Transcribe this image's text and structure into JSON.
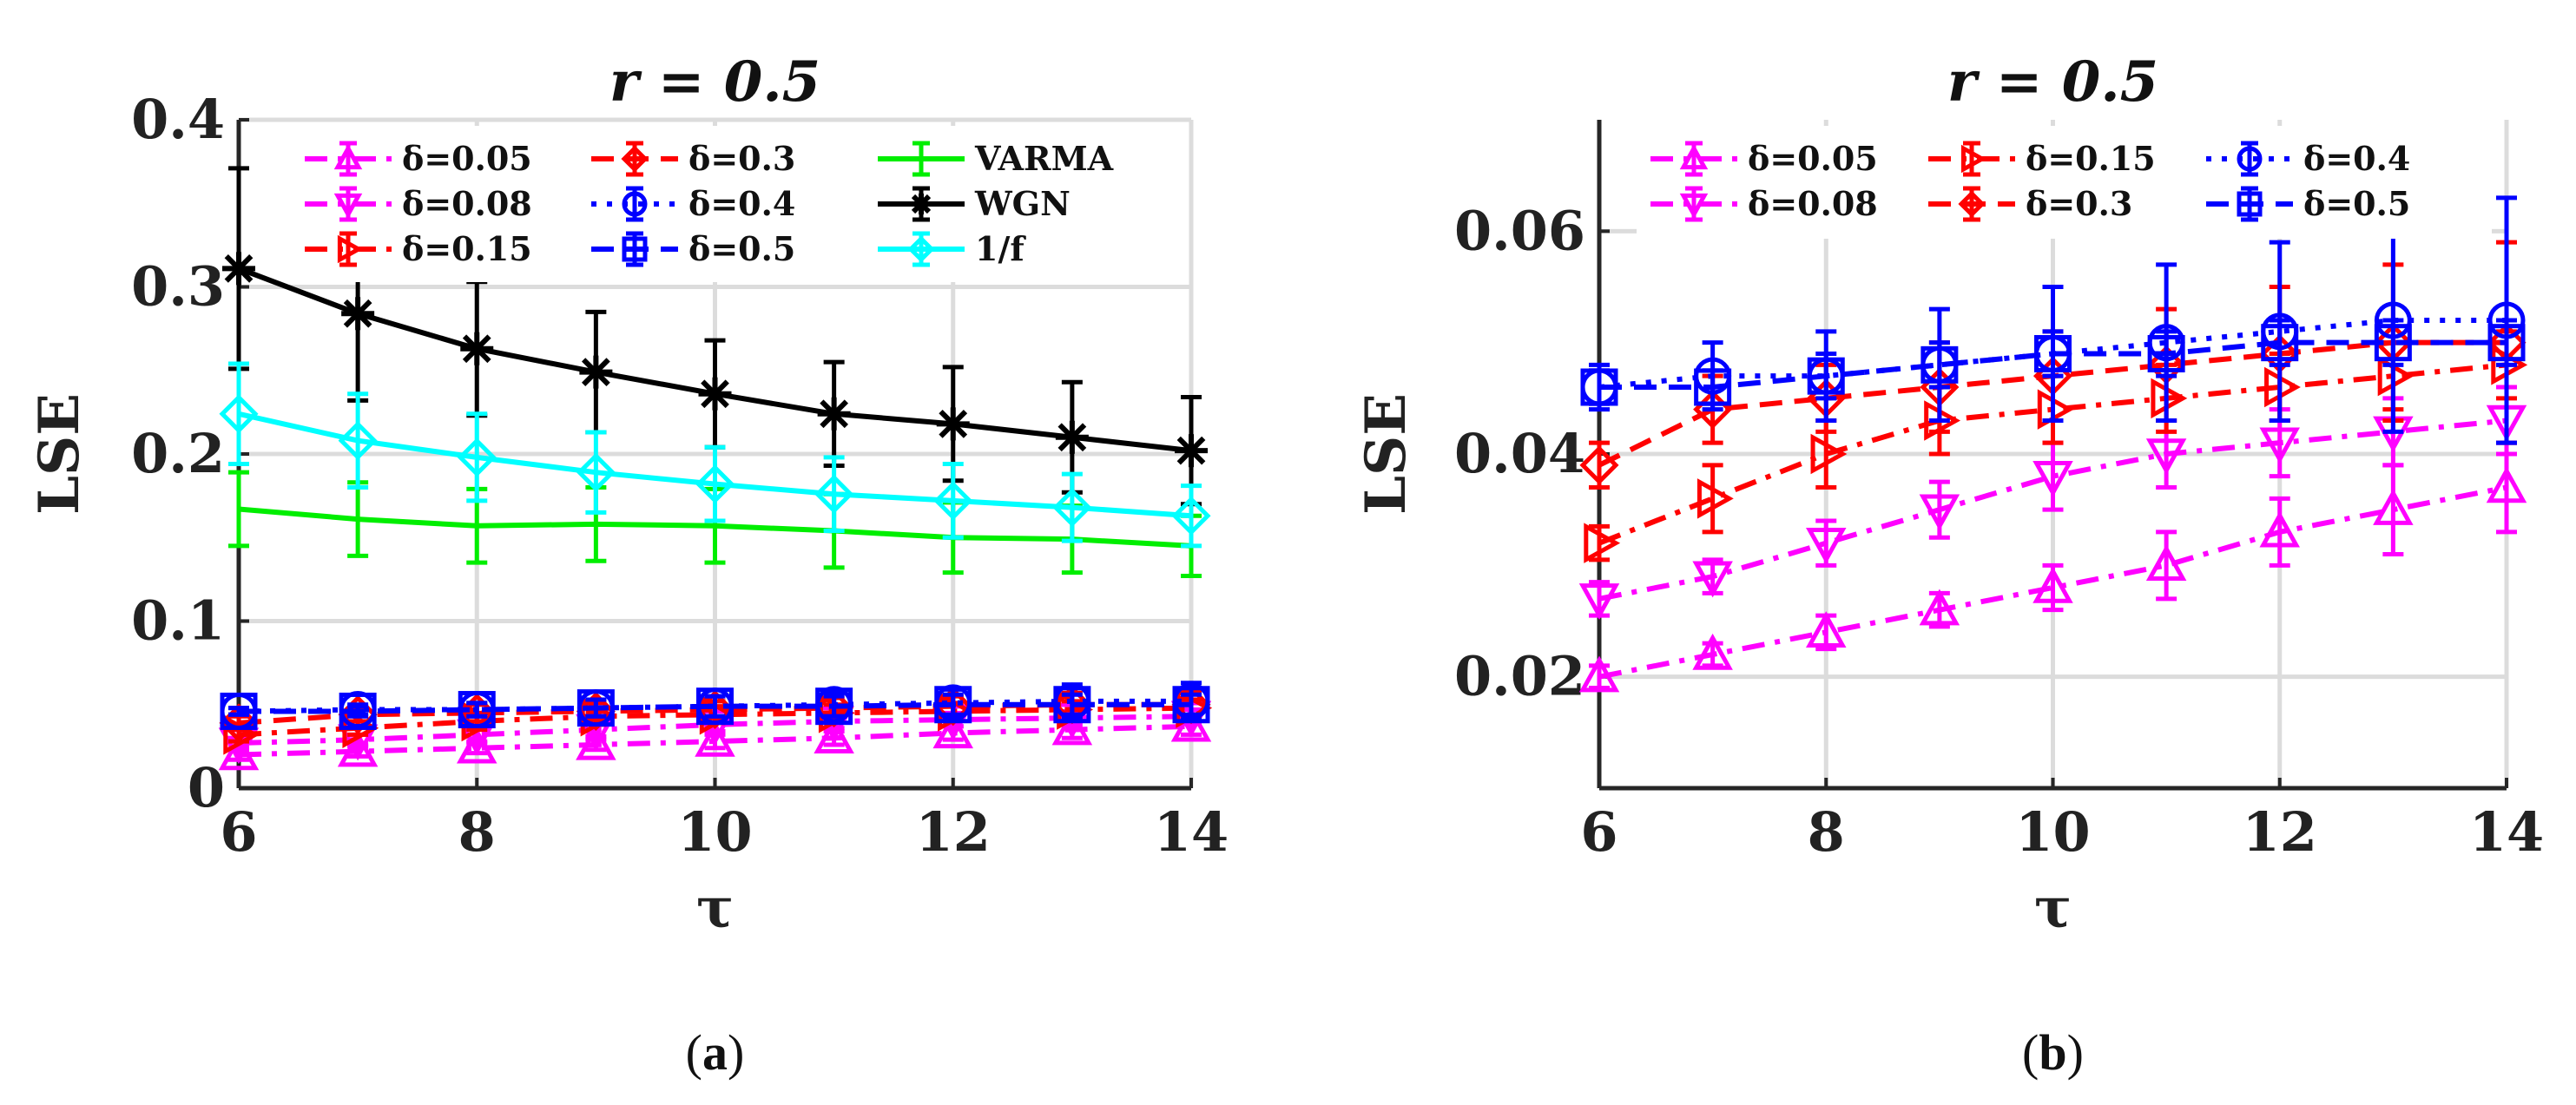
{
  "chart_data": [
    {
      "id": "a",
      "type": "line",
      "title": "r = 0.5",
      "xlabel": "τ",
      "ylabel": "LSE",
      "caption": "a",
      "xlim": [
        6,
        14
      ],
      "ylim": [
        0,
        0.4
      ],
      "xticks": [
        6,
        8,
        10,
        12,
        14
      ],
      "xtick_labels": [
        "6",
        "8",
        "10",
        "12",
        "14"
      ],
      "yticks": [
        0,
        0.1,
        0.2,
        0.3,
        0.4
      ],
      "ytick_labels": [
        "0",
        "0.1",
        "0.2",
        "0.3",
        "0.4"
      ],
      "grid": true,
      "legend_position": "top",
      "legend_columns": 3,
      "x": [
        6,
        7,
        8,
        9,
        10,
        11,
        12,
        13,
        14
      ],
      "series": [
        {
          "name": "δ=0.05",
          "color": "#ff00ff",
          "dash": "dashdot",
          "marker": "triangle-up",
          "values": [
            0.02,
            0.022,
            0.024,
            0.026,
            0.028,
            0.03,
            0.033,
            0.035,
            0.037
          ],
          "err": [
            0.003,
            0.003,
            0.003,
            0.003,
            0.004,
            0.004,
            0.004,
            0.005,
            0.005
          ]
        },
        {
          "name": "δ=0.08",
          "color": "#ff00ff",
          "dash": "dashdot",
          "marker": "triangle-down",
          "values": [
            0.027,
            0.029,
            0.032,
            0.035,
            0.038,
            0.04,
            0.041,
            0.042,
            0.043
          ],
          "err": [
            0.003,
            0.003,
            0.004,
            0.004,
            0.004,
            0.004,
            0.004,
            0.004,
            0.004
          ]
        },
        {
          "name": "δ=0.15",
          "color": "#ff0000",
          "dash": "dashdot",
          "marker": "triangle-right",
          "values": [
            0.032,
            0.036,
            0.04,
            0.043,
            0.044,
            0.045,
            0.046,
            0.047,
            0.048
          ],
          "err": [
            0.004,
            0.004,
            0.005,
            0.005,
            0.005,
            0.005,
            0.005,
            0.005,
            0.005
          ]
        },
        {
          "name": "δ=0.3",
          "color": "#ff0000",
          "dash": "dash",
          "marker": "diamond",
          "values": [
            0.039,
            0.044,
            0.045,
            0.046,
            0.047,
            0.048,
            0.049,
            0.05,
            0.05
          ],
          "err": [
            0.004,
            0.004,
            0.005,
            0.005,
            0.005,
            0.006,
            0.006,
            0.007,
            0.008
          ]
        },
        {
          "name": "δ=0.4",
          "color": "#0000ff",
          "dash": "dot",
          "marker": "circle",
          "values": [
            0.046,
            0.047,
            0.047,
            0.048,
            0.049,
            0.05,
            0.051,
            0.052,
            0.052
          ],
          "err": [
            0.002,
            0.003,
            0.004,
            0.005,
            0.006,
            0.007,
            0.008,
            0.01,
            0.011
          ]
        },
        {
          "name": "δ=0.5",
          "color": "#0000ff",
          "dash": "dash",
          "marker": "square",
          "values": [
            0.046,
            0.046,
            0.047,
            0.048,
            0.049,
            0.049,
            0.05,
            0.05,
            0.05
          ],
          "err": [
            0.002,
            0.003,
            0.004,
            0.005,
            0.006,
            0.006,
            0.006,
            0.006,
            0.006
          ]
        },
        {
          "name": "VARMA",
          "color": "#00ee00",
          "dash": "solid",
          "marker": "none",
          "values": [
            0.167,
            0.161,
            0.157,
            0.158,
            0.157,
            0.154,
            0.15,
            0.149,
            0.145
          ],
          "err": [
            0.022,
            0.022,
            0.022,
            0.022,
            0.022,
            0.022,
            0.021,
            0.02,
            0.018
          ]
        },
        {
          "name": "WGN",
          "color": "#000000",
          "dash": "solid",
          "marker": "star",
          "values": [
            0.311,
            0.284,
            0.263,
            0.249,
            0.236,
            0.224,
            0.218,
            0.21,
            0.202
          ],
          "err": [
            0.06,
            0.052,
            0.04,
            0.036,
            0.032,
            0.031,
            0.034,
            0.033,
            0.032
          ]
        },
        {
          "name": "1/f",
          "color": "#00ffff",
          "dash": "solid",
          "marker": "diamond",
          "values": [
            0.224,
            0.208,
            0.198,
            0.189,
            0.182,
            0.176,
            0.172,
            0.168,
            0.163
          ],
          "err": [
            0.03,
            0.028,
            0.026,
            0.024,
            0.022,
            0.022,
            0.022,
            0.02,
            0.018
          ]
        }
      ]
    },
    {
      "id": "b",
      "type": "line",
      "title": "r = 0.5",
      "xlabel": "τ",
      "ylabel": "LSE",
      "caption": "b",
      "xlim": [
        6,
        14
      ],
      "ylim": [
        0.01,
        0.07
      ],
      "xticks": [
        6,
        8,
        10,
        12,
        14
      ],
      "xtick_labels": [
        "6",
        "8",
        "10",
        "12",
        "14"
      ],
      "yticks": [
        0.02,
        0.04,
        0.06
      ],
      "ytick_labels": [
        "0.02",
        "0.04",
        "0.06"
      ],
      "grid": true,
      "legend_position": "top",
      "legend_columns": 3,
      "x": [
        6,
        7,
        8,
        9,
        10,
        11,
        12,
        13,
        14
      ],
      "series": [
        {
          "name": "δ=0.05",
          "color": "#ff00ff",
          "dash": "dashdot",
          "marker": "triangle-up",
          "values": [
            0.02,
            0.022,
            0.024,
            0.026,
            0.028,
            0.03,
            0.033,
            0.035,
            0.037
          ],
          "err": [
            0.001,
            0.001,
            0.0015,
            0.0015,
            0.002,
            0.003,
            0.003,
            0.004,
            0.004
          ]
        },
        {
          "name": "δ=0.08",
          "color": "#ff00ff",
          "dash": "dashdot",
          "marker": "triangle-down",
          "values": [
            0.027,
            0.029,
            0.032,
            0.035,
            0.038,
            0.04,
            0.041,
            0.042,
            0.043
          ],
          "err": [
            0.0015,
            0.0015,
            0.002,
            0.0025,
            0.003,
            0.003,
            0.003,
            0.003,
            0.003
          ]
        },
        {
          "name": "δ=0.15",
          "color": "#ff0000",
          "dash": "dashdot",
          "marker": "triangle-right",
          "values": [
            0.032,
            0.036,
            0.04,
            0.043,
            0.044,
            0.045,
            0.046,
            0.047,
            0.048
          ],
          "err": [
            0.0015,
            0.003,
            0.003,
            0.003,
            0.003,
            0.003,
            0.003,
            0.003,
            0.003
          ]
        },
        {
          "name": "δ=0.3",
          "color": "#ff0000",
          "dash": "dash",
          "marker": "diamond",
          "values": [
            0.039,
            0.044,
            0.045,
            0.046,
            0.047,
            0.048,
            0.049,
            0.05,
            0.05
          ],
          "err": [
            0.002,
            0.003,
            0.003,
            0.004,
            0.004,
            0.005,
            0.006,
            0.007,
            0.009
          ]
        },
        {
          "name": "δ=0.4",
          "color": "#0000ff",
          "dash": "dot",
          "marker": "circle",
          "values": [
            0.046,
            0.047,
            0.047,
            0.048,
            0.049,
            0.05,
            0.051,
            0.052,
            0.052
          ],
          "err": [
            0.002,
            0.003,
            0.004,
            0.005,
            0.006,
            0.007,
            0.008,
            0.01,
            0.011
          ]
        },
        {
          "name": "δ=0.5",
          "color": "#0000ff",
          "dash": "dash",
          "marker": "square",
          "values": [
            0.046,
            0.046,
            0.047,
            0.048,
            0.049,
            0.049,
            0.05,
            0.05,
            0.05
          ],
          "err": [
            0.0015,
            0.0015,
            0.002,
            0.002,
            0.002,
            0.002,
            0.002,
            0.002,
            0.002
          ]
        }
      ]
    }
  ]
}
